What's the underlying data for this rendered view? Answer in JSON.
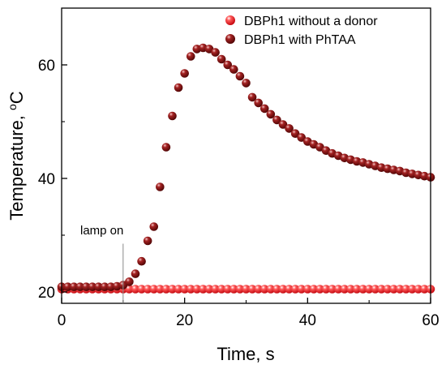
{
  "chart_data": {
    "type": "scatter",
    "xlabel": "Time, s",
    "ylabel": "Temperature, ",
    "ylabel_unit_sup": "o",
    "ylabel_unit": "C",
    "xlim": [
      0,
      60
    ],
    "ylim": [
      18,
      70
    ],
    "x_ticks": [
      0,
      20,
      40,
      60
    ],
    "x_tick_labels": [
      "0",
      "20",
      "40",
      "60"
    ],
    "x_minor_ticks": [
      10,
      30,
      50
    ],
    "y_ticks": [
      20,
      40,
      60
    ],
    "y_tick_labels": [
      "20",
      "40",
      "60"
    ],
    "y_minor_ticks": [
      30,
      50
    ],
    "grid": false,
    "legend_position": "top-right",
    "series": [
      {
        "name": "DBPh1 without a donor",
        "color": "#e8101a",
        "x": [
          0,
          1,
          2,
          3,
          4,
          5,
          6,
          7,
          8,
          9,
          10,
          11,
          12,
          13,
          14,
          15,
          16,
          17,
          18,
          19,
          20,
          21,
          22,
          23,
          24,
          25,
          26,
          27,
          28,
          29,
          30,
          31,
          32,
          33,
          34,
          35,
          36,
          37,
          38,
          39,
          40,
          41,
          42,
          43,
          44,
          45,
          46,
          47,
          48,
          49,
          50,
          51,
          52,
          53,
          54,
          55,
          56,
          57,
          58,
          59,
          60
        ],
        "y": [
          20.5,
          20.5,
          20.5,
          20.5,
          20.5,
          20.5,
          20.5,
          20.5,
          20.5,
          20.5,
          20.5,
          20.5,
          20.5,
          20.5,
          20.5,
          20.5,
          20.5,
          20.5,
          20.5,
          20.5,
          20.5,
          20.5,
          20.5,
          20.5,
          20.5,
          20.5,
          20.5,
          20.5,
          20.5,
          20.5,
          20.5,
          20.5,
          20.5,
          20.5,
          20.5,
          20.5,
          20.5,
          20.5,
          20.5,
          20.5,
          20.5,
          20.5,
          20.5,
          20.5,
          20.5,
          20.5,
          20.5,
          20.5,
          20.5,
          20.5,
          20.5,
          20.5,
          20.5,
          20.5,
          20.5,
          20.5,
          20.5,
          20.5,
          20.5,
          20.5,
          20.5
        ]
      },
      {
        "name": "DBPh1 with PhTAA",
        "color": "#7a0c0c",
        "x": [
          0,
          1,
          2,
          3,
          4,
          5,
          6,
          7,
          8,
          9,
          10,
          11,
          12,
          13,
          14,
          15,
          16,
          17,
          18,
          19,
          20,
          21,
          22,
          23,
          24,
          25,
          26,
          27,
          28,
          29,
          30,
          31,
          32,
          33,
          34,
          35,
          36,
          37,
          38,
          39,
          40,
          41,
          42,
          43,
          44,
          45,
          46,
          47,
          48,
          49,
          50,
          51,
          52,
          53,
          54,
          55,
          56,
          57,
          58,
          59,
          60
        ],
        "y": [
          20.9,
          20.9,
          20.9,
          20.9,
          20.9,
          20.9,
          20.9,
          20.9,
          20.9,
          21.0,
          21.2,
          21.8,
          23.2,
          25.4,
          29.0,
          31.5,
          38.5,
          45.5,
          51.0,
          56.0,
          58.5,
          61.5,
          62.8,
          63.0,
          62.8,
          62.2,
          61.0,
          60.0,
          59.2,
          58.0,
          56.8,
          54.3,
          53.3,
          52.3,
          51.3,
          50.3,
          49.5,
          48.8,
          47.9,
          47.2,
          46.5,
          46.0,
          45.5,
          44.9,
          44.4,
          44.0,
          43.6,
          43.3,
          43.0,
          42.8,
          42.5,
          42.2,
          41.9,
          41.7,
          41.5,
          41.3,
          41.0,
          40.8,
          40.6,
          40.4,
          40.2
        ]
      }
    ],
    "annotations": [
      {
        "text": "lamp on",
        "x": 10,
        "y_top": 28.5,
        "y_bottom": 18
      }
    ]
  }
}
